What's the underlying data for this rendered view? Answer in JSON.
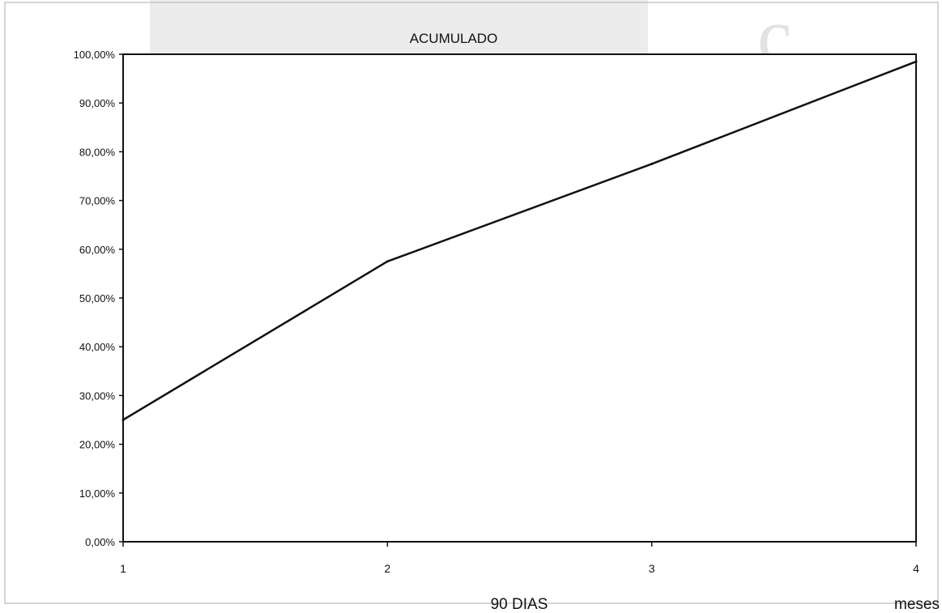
{
  "chart_data": {
    "type": "line",
    "title": "ACUMULADO",
    "xlabel": "90 DIAS",
    "x_unit_label": "meses",
    "x": [
      1,
      2,
      3,
      4
    ],
    "series": [
      {
        "values": [
          25.0,
          57.5,
          77.5,
          98.5
        ]
      }
    ],
    "xlim": [
      1,
      4
    ],
    "ylim": [
      0,
      100
    ],
    "y_ticks": [
      "0,00%",
      "10,00%",
      "20,00%",
      "30,00%",
      "40,00%",
      "50,00%",
      "60,00%",
      "70,00%",
      "80,00%",
      "90,00%",
      "100,00%"
    ],
    "x_ticks": [
      "1",
      "2",
      "3",
      "4"
    ],
    "grid": false,
    "legend": "none",
    "line_color": "#111111",
    "background": "#ffffff"
  }
}
